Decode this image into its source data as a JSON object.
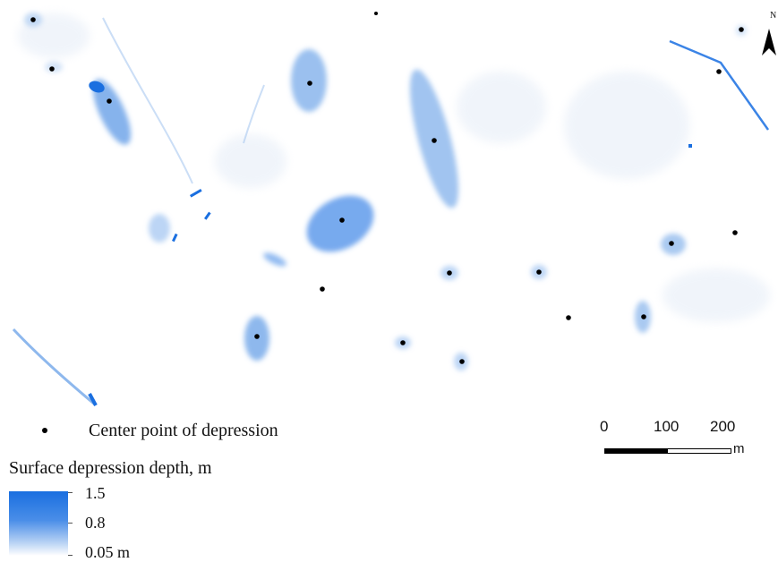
{
  "map": {
    "north_label": "N",
    "fill_color": "#1a6fe0",
    "center_points": [
      {
        "id": "p1"
      },
      {
        "id": "p2"
      },
      {
        "id": "p3"
      },
      {
        "id": "p4"
      },
      {
        "id": "p5"
      },
      {
        "id": "p6"
      },
      {
        "id": "p7"
      },
      {
        "id": "p8"
      },
      {
        "id": "p9"
      },
      {
        "id": "p10"
      },
      {
        "id": "p11"
      },
      {
        "id": "p12"
      },
      {
        "id": "p13"
      },
      {
        "id": "p14"
      },
      {
        "id": "p15"
      },
      {
        "id": "p16"
      },
      {
        "id": "p17"
      },
      {
        "id": "p18"
      },
      {
        "id": "p19"
      }
    ]
  },
  "legend": {
    "point_label": "Center point of depression",
    "depth_title": "Surface depression depth, m",
    "ramp_labels": [
      "1.5",
      "0.8",
      "0.05 m"
    ],
    "ramp_colors": [
      "#1a6fe0",
      "#4a8ee8",
      "#ffffff"
    ]
  },
  "scalebar": {
    "labels": [
      "0",
      "100",
      "200"
    ],
    "unit": "m"
  }
}
